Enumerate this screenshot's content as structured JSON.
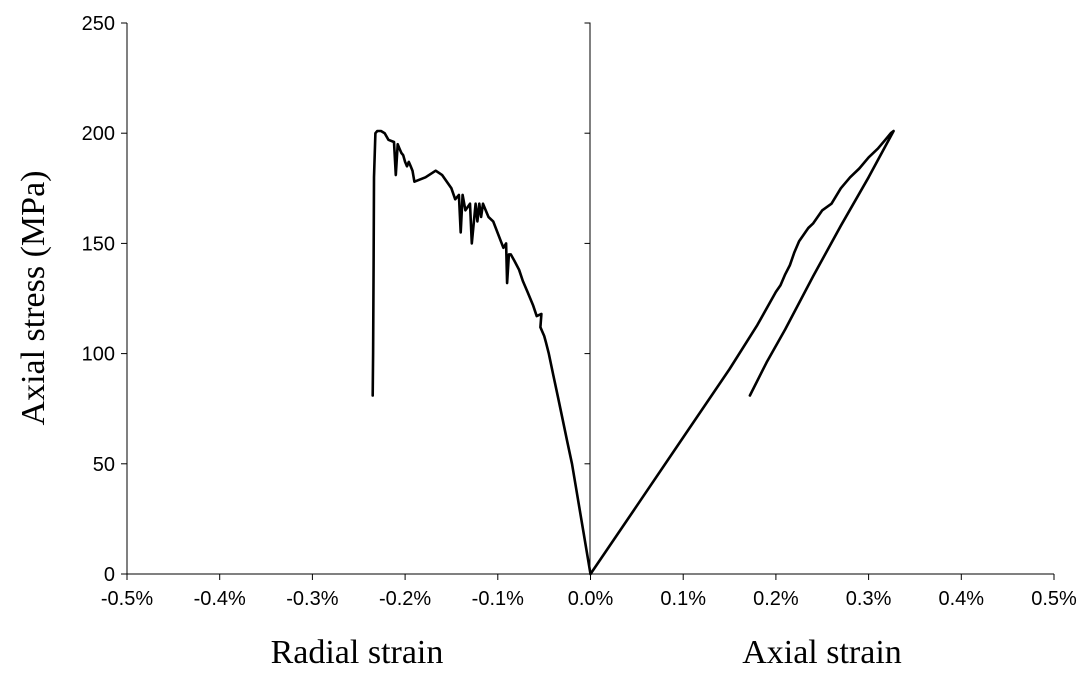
{
  "chart_data": {
    "type": "line",
    "title": "",
    "ylabel": "Axial stress (MPa)",
    "xlabels": [
      "Radial strain",
      "Axial strain"
    ],
    "xlim": [
      -0.5,
      0.5
    ],
    "ylim": [
      0,
      250
    ],
    "x_unit": "%",
    "x_ticks": [
      "-0.5%",
      "-0.4%",
      "-0.3%",
      "-0.2%",
      "-0.1%",
      "0.0%",
      "0.1%",
      "0.2%",
      "0.3%",
      "0.4%",
      "0.5%"
    ],
    "x_tick_values": [
      -0.5,
      -0.4,
      -0.3,
      -0.2,
      -0.1,
      0.0,
      0.1,
      0.2,
      0.3,
      0.4,
      0.5
    ],
    "y_ticks": [
      "0",
      "50",
      "100",
      "150",
      "200",
      "250"
    ],
    "y_tick_values": [
      0,
      50,
      100,
      150,
      200,
      250
    ],
    "grid": false,
    "legend": "none",
    "colors": {
      "line": "#000000",
      "axes": "#000000"
    },
    "series": [
      {
        "points": [
          [
            0.0,
            0
          ],
          [
            -0.004,
            10
          ],
          [
            -0.008,
            20
          ],
          [
            -0.012,
            30
          ],
          [
            -0.016,
            40
          ],
          [
            -0.02,
            50
          ],
          [
            -0.025,
            60
          ],
          [
            -0.03,
            70
          ],
          [
            -0.035,
            80
          ],
          [
            -0.04,
            90
          ],
          [
            -0.045,
            100
          ],
          [
            -0.048,
            105
          ],
          [
            -0.05,
            108
          ],
          [
            -0.052,
            110
          ],
          [
            -0.054,
            112
          ],
          [
            -0.053,
            118
          ],
          [
            -0.058,
            117
          ],
          [
            -0.062,
            122
          ],
          [
            -0.068,
            128
          ],
          [
            -0.073,
            133
          ],
          [
            -0.077,
            138
          ],
          [
            -0.082,
            142
          ],
          [
            -0.086,
            145
          ],
          [
            -0.088,
            145
          ],
          [
            -0.09,
            132
          ],
          [
            -0.091,
            150
          ],
          [
            -0.094,
            148
          ],
          [
            -0.105,
            160
          ],
          [
            -0.11,
            162
          ],
          [
            -0.114,
            166
          ],
          [
            -0.116,
            168
          ],
          [
            -0.118,
            162
          ],
          [
            -0.12,
            168
          ],
          [
            -0.122,
            160
          ],
          [
            -0.124,
            168
          ],
          [
            -0.128,
            150
          ],
          [
            -0.13,
            168
          ],
          [
            -0.135,
            165
          ],
          [
            -0.138,
            172
          ],
          [
            -0.14,
            155
          ],
          [
            -0.142,
            172
          ],
          [
            -0.146,
            170
          ],
          [
            -0.15,
            175
          ],
          [
            -0.16,
            181
          ],
          [
            -0.167,
            183
          ],
          [
            -0.178,
            180
          ],
          [
            -0.19,
            178
          ],
          [
            -0.192,
            183
          ],
          [
            -0.194,
            185
          ],
          [
            -0.196,
            187
          ],
          [
            -0.198,
            185
          ],
          [
            -0.2,
            187
          ],
          [
            -0.202,
            190
          ],
          [
            -0.204,
            191
          ],
          [
            -0.206,
            193
          ],
          [
            -0.208,
            195
          ],
          [
            -0.21,
            181
          ],
          [
            -0.212,
            196
          ],
          [
            -0.218,
            197
          ],
          [
            -0.222,
            200
          ],
          [
            -0.226,
            201
          ],
          [
            -0.23,
            201
          ],
          [
            -0.232,
            200
          ],
          [
            -0.2335,
            180
          ],
          [
            -0.234,
            140
          ],
          [
            -0.2345,
            100
          ],
          [
            -0.235,
            81
          ]
        ]
      },
      {
        "points": [
          [
            0.0,
            0
          ],
          [
            0.05,
            31
          ],
          [
            0.1,
            62
          ],
          [
            0.15,
            93
          ],
          [
            0.18,
            113
          ],
          [
            0.2,
            128
          ],
          [
            0.205,
            131
          ],
          [
            0.21,
            136
          ],
          [
            0.215,
            140
          ],
          [
            0.22,
            146
          ],
          [
            0.225,
            151
          ],
          [
            0.23,
            154
          ],
          [
            0.235,
            157
          ],
          [
            0.24,
            159
          ],
          [
            0.25,
            165
          ],
          [
            0.26,
            168
          ],
          [
            0.27,
            175
          ],
          [
            0.28,
            180
          ],
          [
            0.29,
            184
          ],
          [
            0.3,
            189
          ],
          [
            0.31,
            193
          ],
          [
            0.318,
            197
          ],
          [
            0.324,
            200
          ],
          [
            0.327,
            201
          ],
          [
            0.3,
            180
          ],
          [
            0.27,
            158
          ],
          [
            0.24,
            135
          ],
          [
            0.21,
            111
          ],
          [
            0.19,
            96
          ],
          [
            0.172,
            81
          ]
        ]
      }
    ]
  }
}
